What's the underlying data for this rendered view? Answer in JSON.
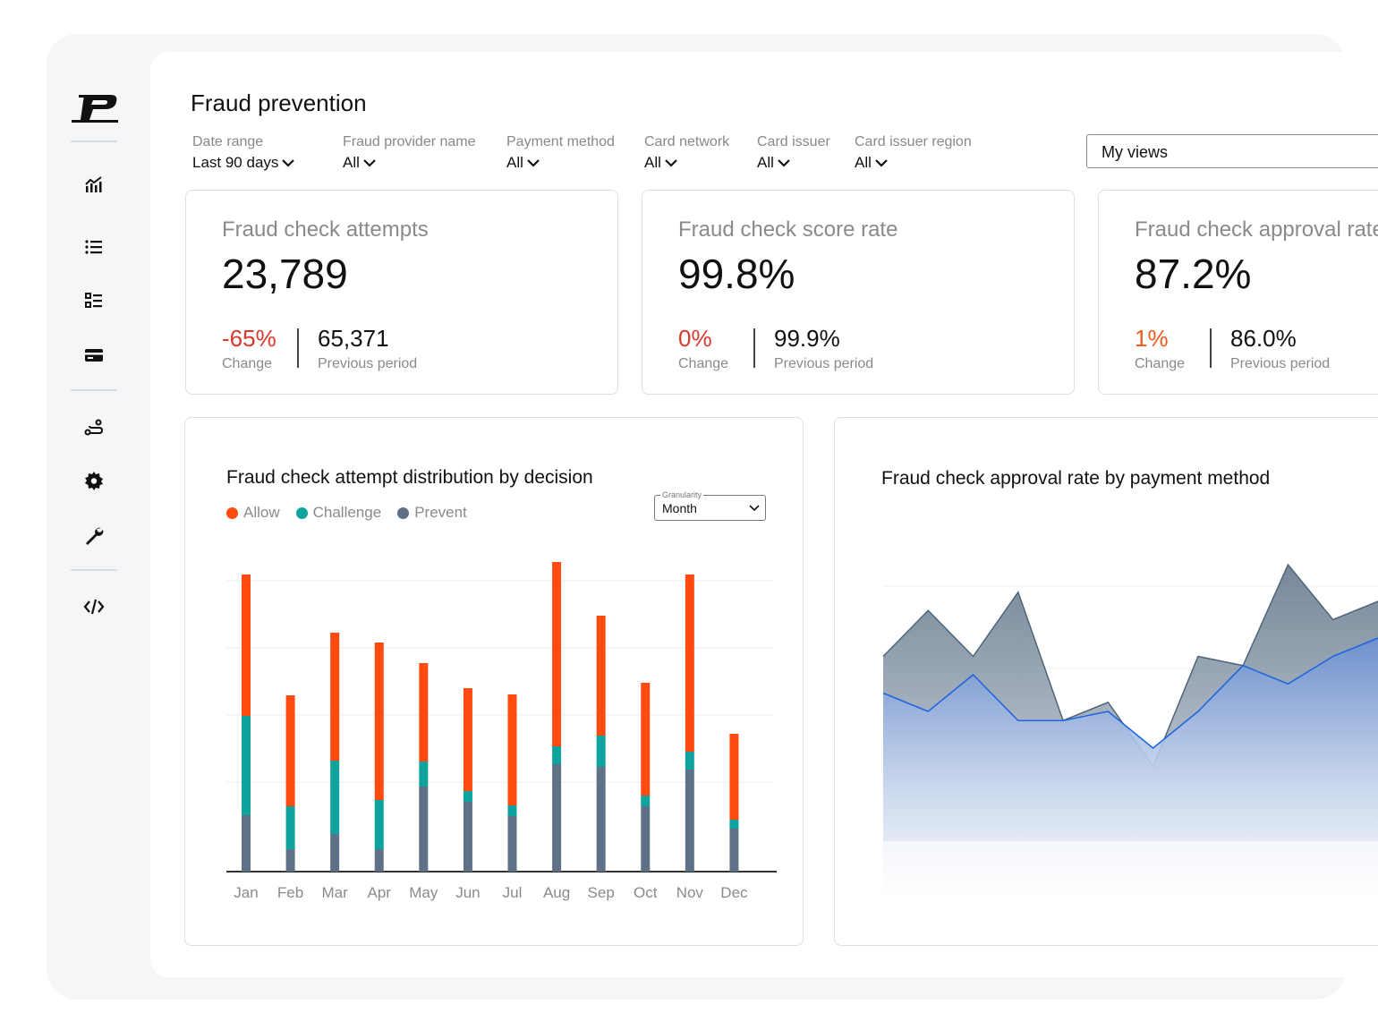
{
  "header": {
    "title": "Fraud prevention"
  },
  "filters": [
    {
      "label": "Date range",
      "value": "Last 90 days"
    },
    {
      "label": "Fraud provider name",
      "value": "All"
    },
    {
      "label": "Payment method",
      "value": "All"
    },
    {
      "label": "Card network",
      "value": "All"
    },
    {
      "label": "Card issuer",
      "value": "All"
    },
    {
      "label": "Card issuer region",
      "value": "All"
    }
  ],
  "views": {
    "label": "My views"
  },
  "sidebar": {
    "icons": [
      "logo-icon",
      "analytics-icon",
      "list-icon",
      "checklist-icon",
      "card-icon",
      "route-icon",
      "gear-icon",
      "wrench-icon",
      "code-icon"
    ]
  },
  "kpis": [
    {
      "title": "Fraud check attempts",
      "value": "23,789",
      "change": "-65%",
      "change_label": "Change",
      "change_color": "#d9382b",
      "previous": "65,371",
      "previous_label": "Previous period"
    },
    {
      "title": "Fraud check score rate",
      "value": "99.8%",
      "change": "0%",
      "change_label": "Change",
      "change_color": "#d9382b",
      "previous": "99.9%",
      "previous_label": "Previous period"
    },
    {
      "title": "Fraud check approval rate",
      "value": "87.2%",
      "change": "1%",
      "change_label": "Change",
      "change_color": "#f05a1a",
      "previous": "86.0%",
      "previous_label": "Previous period"
    }
  ],
  "colors": {
    "allow": "#ff4a10",
    "challenge": "#0fa39d",
    "prevent": "#5f7186",
    "line": "#1f66e0"
  },
  "chart_data": [
    {
      "type": "bar",
      "stacked": true,
      "title": "Fraud check attempt distribution by decision",
      "legend": [
        "Allow",
        "Challenge",
        "Prevent"
      ],
      "categories": [
        "Jan",
        "Feb",
        "Mar",
        "Apr",
        "May",
        "Jun",
        "Jul",
        "Aug",
        "Sep",
        "Oct",
        "Nov",
        "Dec"
      ],
      "series": [
        {
          "name": "Prevent",
          "values": [
            63,
            25,
            42,
            25,
            95,
            78,
            62,
            120,
            117,
            73,
            114,
            48
          ]
        },
        {
          "name": "Challenge",
          "values": [
            111,
            48,
            82,
            55,
            28,
            12,
            12,
            20,
            35,
            12,
            20,
            10
          ]
        },
        {
          "name": "Allow",
          "values": [
            158,
            124,
            143,
            176,
            110,
            115,
            124,
            206,
            134,
            126,
            198,
            96
          ]
        }
      ],
      "granularity": {
        "label": "Granularity",
        "value": "Month"
      },
      "ylim": [
        0,
        350
      ],
      "grid": true
    },
    {
      "type": "area",
      "title": "Fraud check approval rate by payment method",
      "x": [
        0,
        1,
        2,
        3,
        4,
        5,
        6,
        7,
        8,
        9,
        10,
        11
      ],
      "series": [
        {
          "values": [
            86,
            91,
            86,
            93,
            79,
            81,
            74,
            86,
            85,
            96,
            90,
            92
          ]
        },
        {
          "values": [
            82,
            80,
            84,
            79,
            79,
            80,
            76,
            80,
            85,
            83,
            86,
            88
          ]
        }
      ],
      "ylim": [
        60,
        100
      ],
      "grid": true
    }
  ]
}
